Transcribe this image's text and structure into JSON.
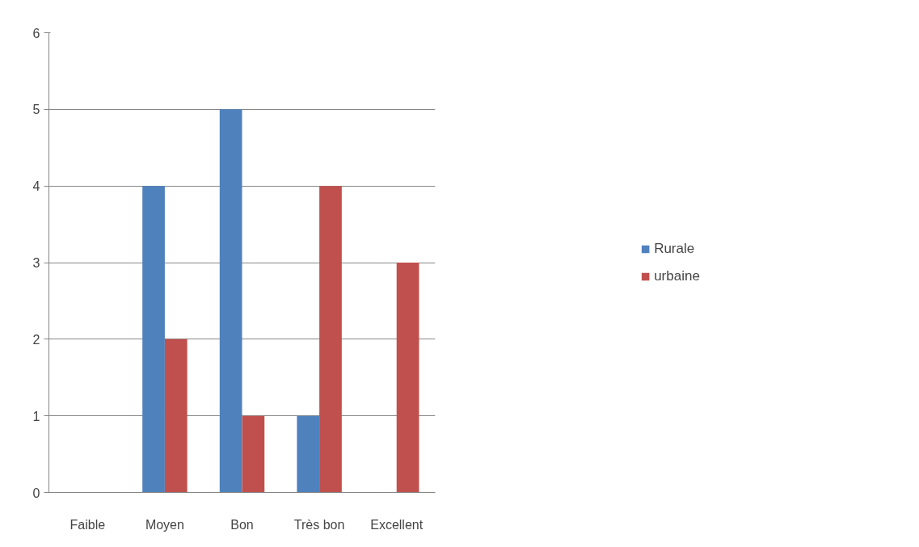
{
  "chart_data": {
    "type": "bar",
    "categories": [
      "Faible",
      "Moyen",
      "Bon",
      "Très bon",
      "Excellent"
    ],
    "series": [
      {
        "name": "Rurale",
        "color": "#4f81bd",
        "values": [
          0,
          4,
          5,
          1,
          0
        ]
      },
      {
        "name": "urbaine",
        "color": "#c0504d",
        "values": [
          0,
          2,
          1,
          4,
          3
        ]
      }
    ],
    "ylim": [
      0,
      6
    ],
    "yticks": [
      0,
      1,
      2,
      3,
      4,
      5,
      6
    ],
    "grid": "y",
    "legend": "right"
  }
}
